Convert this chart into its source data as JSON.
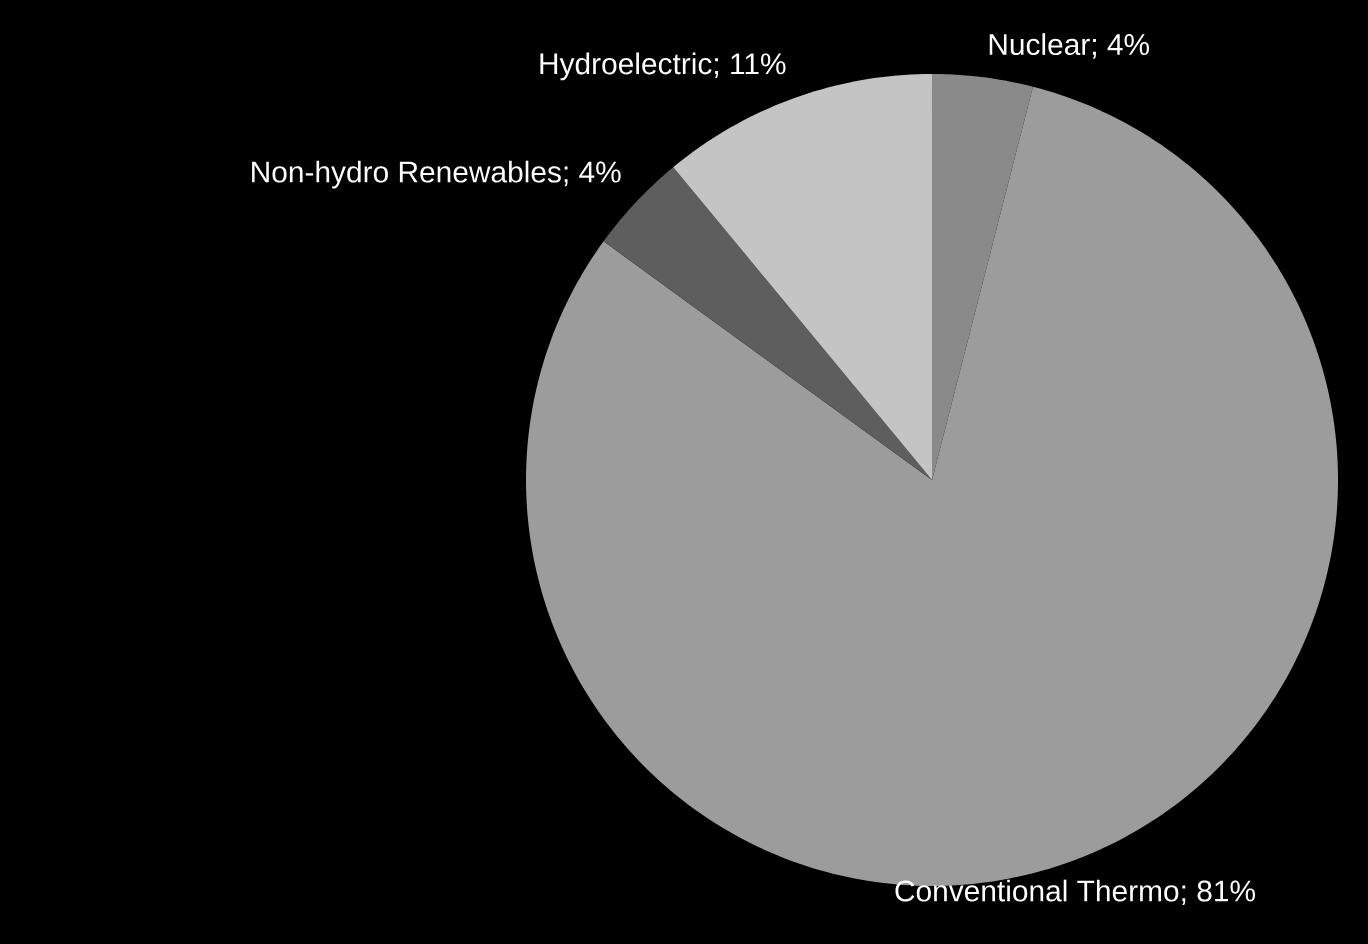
{
  "chart_data": {
    "type": "pie",
    "categories": [
      "Nuclear; 4%",
      "Conventional Thermo; 81%",
      "Non-hydro Renewables; 4%",
      "Hydroelectric; 11%"
    ],
    "values": [
      4,
      81,
      4,
      11
    ],
    "colors": [
      "#8a8a8a",
      "#9c9c9c",
      "#5e5e5e",
      "#c4c4c4"
    ]
  }
}
